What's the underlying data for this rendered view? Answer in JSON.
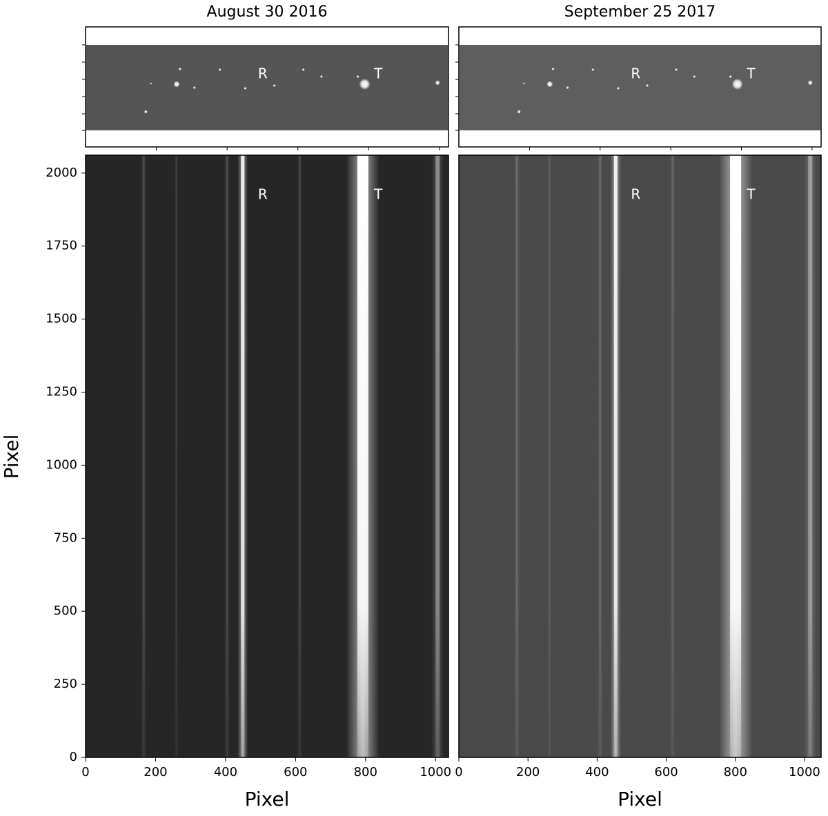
{
  "chart_data": [
    {
      "type": "image",
      "title": "August 30 2016",
      "xlabel": "Pixel",
      "ylabel": "Pixel",
      "xlim": [
        0,
        1037
      ],
      "xticks": [
        0,
        200,
        400,
        600,
        800,
        1000
      ],
      "ylim": [
        0,
        2061
      ],
      "yticks": [
        0,
        250,
        500,
        750,
        1000,
        1250,
        1500,
        1750,
        2000
      ],
      "annotations": [
        "R",
        "T"
      ],
      "color": "#262626"
    },
    {
      "type": "image",
      "title": "September 25 2017",
      "xlabel": "Pixel",
      "xlim": [
        0,
        1048
      ],
      "xticks": [
        0,
        200,
        400,
        600,
        800,
        1000
      ],
      "ylim": [
        0,
        2061
      ],
      "annotations": [
        "R",
        "T"
      ],
      "color": "#4a4a4a"
    }
  ]
}
